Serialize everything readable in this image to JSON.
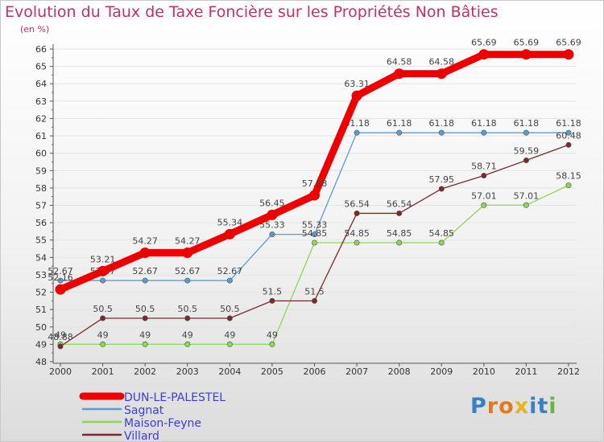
{
  "title": "Evolution du Taux de Taxe Foncière sur les Propriétés Non Bâties",
  "unit": "(en %)",
  "logo": {
    "text": "Proxiti",
    "colors": [
      "#3a7fc1",
      "#e07a1c",
      "#e07a1c",
      "#e0b81c",
      "#3a7fc1",
      "#3a7fc1",
      "#6db33f"
    ]
  },
  "chart_data": {
    "type": "line",
    "title": "Evolution du Taux de Taxe Foncière sur les Propriétés Non Bâties",
    "ylabel": "(en %)",
    "ylim": [
      48,
      66
    ],
    "yticks": [
      48,
      49,
      50,
      51,
      52,
      53,
      54,
      55,
      56,
      57,
      58,
      59,
      60,
      61,
      62,
      63,
      64,
      65,
      66
    ],
    "x": [
      "2000",
      "2001",
      "2002",
      "2003",
      "2004",
      "2005",
      "2006",
      "2007",
      "2008",
      "2009",
      "2010",
      "2011",
      "2012"
    ],
    "series": [
      {
        "name": "DUN-LE-PALESTEL",
        "color": "#ee0000",
        "thick": true,
        "values": [
          52.16,
          53.21,
          54.27,
          54.27,
          55.34,
          56.45,
          57.58,
          63.31,
          64.58,
          64.58,
          65.69,
          65.69,
          65.69
        ],
        "labels": [
          "52.16",
          "53.21",
          "54.27",
          "54.27",
          "55.34",
          "56.45",
          "57.58",
          "63.31",
          "64.58",
          "64.58",
          "65.69",
          "65.69",
          "65.69"
        ]
      },
      {
        "name": "Sagnat",
        "color": "#5b9bd0",
        "thick": false,
        "values": [
          52.67,
          52.67,
          52.67,
          52.67,
          52.67,
          55.33,
          55.33,
          61.18,
          61.18,
          61.18,
          61.18,
          61.18,
          61.18
        ],
        "labels": [
          "52.67",
          "52.67",
          "52.67",
          "52.67",
          "52.67",
          "55.33",
          "55.33",
          "61.18",
          "61.18",
          "61.18",
          "61.18",
          "61.18",
          "61.18"
        ]
      },
      {
        "name": "Maison-Feyne",
        "color": "#8ed65a",
        "thick": false,
        "values": [
          49,
          49,
          49,
          49,
          49,
          49,
          54.85,
          54.85,
          54.85,
          54.85,
          57.01,
          57.01,
          58.15
        ],
        "labels": [
          "49",
          "49",
          "49",
          "49",
          "49",
          "49",
          "54.85",
          "54.85",
          "54.85",
          "54.85",
          "57.01",
          "57.01",
          "58.15"
        ]
      },
      {
        "name": "Villard",
        "color": "#7a2a2a",
        "thick": false,
        "values": [
          48.88,
          50.5,
          50.5,
          50.5,
          50.5,
          51.5,
          51.5,
          56.54,
          56.54,
          57.95,
          58.71,
          59.59,
          60.48
        ],
        "labels": [
          "48.88",
          "50.5",
          "50.5",
          "50.5",
          "50.5",
          "51.5",
          "51.5",
          "56.54",
          "56.54",
          "57.95",
          "58.71",
          "59.59",
          "60.48"
        ]
      }
    ]
  }
}
